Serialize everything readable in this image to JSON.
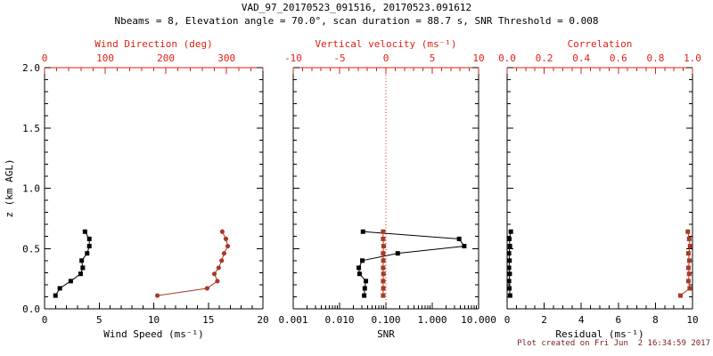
{
  "header": {
    "title": "VAD_97_20170523_091516, 20170523.091612",
    "subtitle": "Nbeams = 8, Elevation angle = 70.0°, scan duration = 88.7 s, SNR Threshold = 0.008"
  },
  "footer": {
    "created": "Plot created on Fri Jun  2 16:34:59 2017"
  },
  "colors": {
    "black": "#000000",
    "axis_red": "#dd1f16",
    "curve_red": "#a83a26",
    "ref_red": "#dd1f16",
    "footer_red": "#7a1a1a",
    "background": "#ffffff"
  },
  "y_axis": {
    "label": "z (km AGL)",
    "min": 0,
    "max": 2,
    "ticks": [
      0,
      0.5,
      1,
      1.5,
      2
    ],
    "tick_labels": [
      "0.0",
      "0.5",
      "1.0",
      "1.5",
      "2.0"
    ],
    "minor_step": 0.1
  },
  "chart_data": [
    {
      "type": "line",
      "name": "wind",
      "show_y_labels": true,
      "x_bottom": {
        "label": "Wind Speed (ms⁻¹)",
        "min": 0,
        "max": 20,
        "ticks": [
          0,
          5,
          10,
          15,
          20
        ],
        "tick_labels": [
          "0",
          "5",
          "10",
          "15",
          "20"
        ],
        "minor_step": 1
      },
      "x_top": {
        "label": "Wind Direction (deg)",
        "min": 0,
        "max": 360,
        "ticks": [
          0,
          100,
          200,
          300
        ],
        "tick_labels": [
          "0",
          "100",
          "200",
          "300"
        ],
        "minor_step": 20
      },
      "series": [
        {
          "name": "wind-speed",
          "axis": "bottom",
          "color_key": "black",
          "marker": "square",
          "z": [
            0.64,
            0.58,
            0.52,
            0.46,
            0.4,
            0.34,
            0.29,
            0.23,
            0.17,
            0.11
          ],
          "values": [
            3.7,
            4.1,
            4.1,
            3.9,
            3.4,
            3.5,
            3.3,
            2.4,
            1.4,
            1.0
          ]
        },
        {
          "name": "wind-direction",
          "axis": "top",
          "color_key": "curve_red",
          "marker": "circle",
          "z": [
            0.64,
            0.58,
            0.52,
            0.46,
            0.4,
            0.34,
            0.29,
            0.23,
            0.17,
            0.11
          ],
          "values": [
            293,
            299,
            302,
            296,
            292,
            287,
            280,
            285,
            268,
            186
          ]
        }
      ]
    },
    {
      "type": "line",
      "name": "snr-vertical-velocity",
      "show_y_labels": false,
      "x_bottom": {
        "label": "SNR",
        "scale": "log",
        "min": 0.001,
        "max": 10,
        "ticks": [
          0.001,
          0.01,
          0.1,
          1,
          10
        ],
        "tick_labels": [
          "0.001",
          "0.010",
          "0.100",
          "1.000",
          "10.000"
        ]
      },
      "x_top": {
        "label": "Vertical velocity (ms⁻¹)",
        "min": -10,
        "max": 10,
        "ticks": [
          -10,
          -5,
          0,
          5,
          10
        ],
        "tick_labels": [
          "-10",
          "-5",
          "0",
          "5",
          "10"
        ],
        "minor_step": 1
      },
      "ref_line_top": 0,
      "series": [
        {
          "name": "snr",
          "axis": "bottom",
          "color_key": "black",
          "marker": "square",
          "z": [
            0.64,
            0.58,
            0.52,
            0.46,
            0.4,
            0.34,
            0.29,
            0.23,
            0.17,
            0.11
          ],
          "values": [
            0.032,
            3.8,
            4.9,
            0.18,
            0.031,
            0.026,
            0.027,
            0.037,
            0.035,
            0.034
          ]
        },
        {
          "name": "vertical-velocity",
          "axis": "top",
          "color_key": "curve_red",
          "marker": "square",
          "z": [
            0.64,
            0.58,
            0.52,
            0.46,
            0.4,
            0.34,
            0.29,
            0.23,
            0.17,
            0.11
          ],
          "values": [
            -0.3,
            -0.3,
            -0.25,
            -0.3,
            -0.28,
            -0.3,
            -0.27,
            -0.3,
            -0.28,
            -0.3
          ]
        }
      ]
    },
    {
      "type": "line",
      "name": "residual-correlation",
      "show_y_labels": false,
      "x_bottom": {
        "label": "Residual (ms⁻¹)",
        "min": 0,
        "max": 10,
        "ticks": [
          0,
          2,
          4,
          6,
          8,
          10
        ],
        "tick_labels": [
          "0",
          "2",
          "4",
          "6",
          "8",
          "10"
        ],
        "minor_step": 0.5
      },
      "x_top": {
        "label": "Correlation",
        "min": 0,
        "max": 1,
        "ticks": [
          0,
          0.2,
          0.4,
          0.6,
          0.8,
          1
        ],
        "tick_labels": [
          "0.0",
          "0.2",
          "0.4",
          "0.6",
          "0.8",
          "1.0"
        ],
        "minor_step": 0.05
      },
      "series": [
        {
          "name": "residual",
          "axis": "bottom",
          "color_key": "black",
          "marker": "square",
          "z": [
            0.64,
            0.58,
            0.52,
            0.46,
            0.4,
            0.34,
            0.29,
            0.23,
            0.17,
            0.11
          ],
          "values": [
            0.2,
            0.12,
            0.15,
            0.1,
            0.13,
            0.1,
            0.14,
            0.1,
            0.12,
            0.16
          ]
        },
        {
          "name": "correlation",
          "axis": "top",
          "color_key": "curve_red",
          "marker": "square",
          "z": [
            0.64,
            0.58,
            0.52,
            0.46,
            0.4,
            0.34,
            0.29,
            0.23,
            0.17,
            0.11
          ],
          "values": [
            0.975,
            0.982,
            0.987,
            0.978,
            0.983,
            0.978,
            0.982,
            0.978,
            0.985,
            0.935
          ]
        }
      ]
    }
  ]
}
